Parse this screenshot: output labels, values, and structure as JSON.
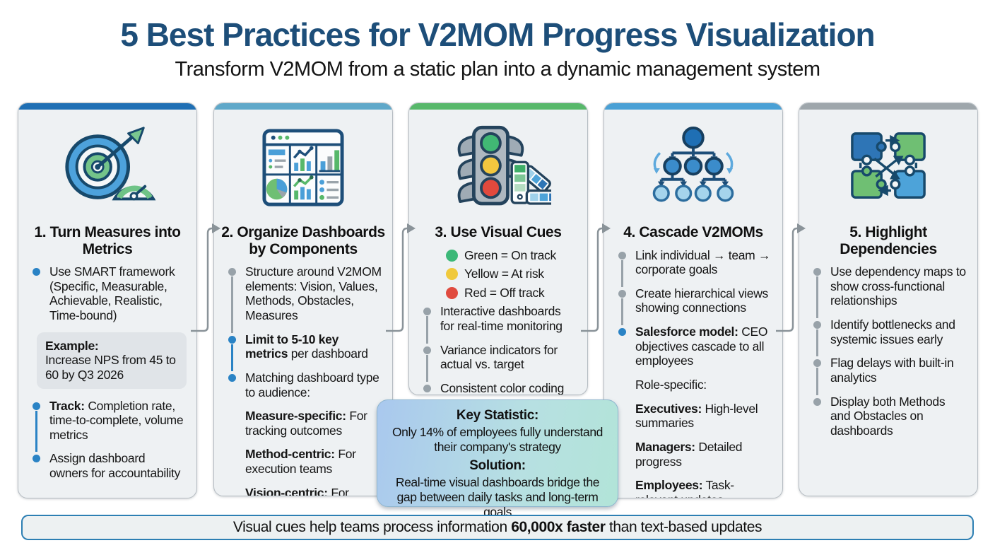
{
  "header": {
    "title": "5 Best Practices for V2MOM Progress Visualization",
    "subtitle": "Transform V2MOM from a static plan into a dynamic management system"
  },
  "colors": {
    "title_navy": "#1d4e79",
    "bullet_blue": "#2a83c5",
    "bullet_gray": "#98a2a9",
    "green": "#3cb878",
    "yellow": "#f0c93c",
    "red": "#e04b3f"
  },
  "cards": [
    {
      "title": "1. Turn Measures into Metrics",
      "accent": "#1f6fb4",
      "icon": "target-gauge-icon",
      "items": [
        {
          "kind": "bullet",
          "dot": "blue",
          "lead": "",
          "text": "Use SMART framework (Specific, Measurable, Achievable, Realistic, Time-bound)"
        },
        {
          "kind": "example",
          "lead": "Example:",
          "text": "Increase NPS from 45 to 60 by Q3 2026"
        },
        {
          "kind": "bullet",
          "dot": "blue",
          "lead": "Track:",
          "text": "Completion rate, time-to-complete, volume metrics"
        },
        {
          "kind": "bullet",
          "dot": "blue",
          "lead": "",
          "text": "Assign dashboard owners for accountability"
        }
      ]
    },
    {
      "title": "2. Organize Dashboards by Components",
      "accent": "#5fa8c9",
      "icon": "dashboard-grid-icon",
      "items": [
        {
          "kind": "bullet",
          "dot": "gray",
          "lead": "",
          "text": "Structure around V2MOM elements: Vision, Values, Methods, Obstacles, Measures"
        },
        {
          "kind": "bullet",
          "dot": "blue",
          "lead": "Limit to 5-10 key metrics",
          "text": "per dashboard"
        },
        {
          "kind": "bullet",
          "dot": "blue",
          "lead": "",
          "text": "Matching dashboard type to audience:"
        },
        {
          "kind": "sub",
          "lead": "Measure-specific:",
          "text": "For tracking outcomes"
        },
        {
          "kind": "sub",
          "lead": "Method-centric:",
          "text": "For execution teams"
        },
        {
          "kind": "sub",
          "lead": "Vision-centric:",
          "text": "For executives"
        }
      ]
    },
    {
      "title": "3. Use Visual Cues",
      "accent": "#57b86a",
      "icon": "traffic-light-icon",
      "items": [
        {
          "kind": "legend",
          "color": "#3cb878",
          "text": "Green = On track"
        },
        {
          "kind": "legend",
          "color": "#f0c93c",
          "text": "Yellow = At risk"
        },
        {
          "kind": "legend",
          "color": "#e04b3f",
          "text": "Red = Off track"
        },
        {
          "kind": "bullet",
          "dot": "gray",
          "lead": "",
          "text": "Interactive dashboards for real-time monitoring"
        },
        {
          "kind": "bullet",
          "dot": "gray",
          "lead": "",
          "text": "Variance indicators for actual vs. target"
        },
        {
          "kind": "bullet",
          "dot": "gray",
          "lead": "",
          "text": "Consistent color coding across all dashboards"
        }
      ]
    },
    {
      "title": "4. Cascade V2MOMs",
      "accent": "#49a0d5",
      "icon": "cascade-tree-icon",
      "items": [
        {
          "kind": "bullet",
          "dot": "gray",
          "lead": "",
          "text": "Link individual → team → corporate goals"
        },
        {
          "kind": "bullet",
          "dot": "gray",
          "lead": "",
          "text": "Create hierarchical views showing connections"
        },
        {
          "kind": "bullet",
          "dot": "blue",
          "lead": "Salesforce model:",
          "text": "CEO objectives cascade to all employees"
        },
        {
          "kind": "plain",
          "lead": "",
          "text": "Role-specific:"
        },
        {
          "kind": "sub",
          "lead": "Executives:",
          "text": "High-level summaries"
        },
        {
          "kind": "sub",
          "lead": "Managers:",
          "text": "Detailed progress"
        },
        {
          "kind": "sub",
          "lead": "Employees:",
          "text": "Task-relevant updates"
        }
      ]
    },
    {
      "title": "5. Highlight Dependencies",
      "accent": "#9ea6ab",
      "icon": "puzzle-dependencies-icon",
      "items": [
        {
          "kind": "bullet",
          "dot": "gray",
          "lead": "",
          "text": "Use dependency maps to show cross-functional relationships"
        },
        {
          "kind": "bullet",
          "dot": "gray",
          "lead": "",
          "text": "Identify bottlenecks and systemic issues early"
        },
        {
          "kind": "bullet",
          "dot": "gray",
          "lead": "",
          "text": "Flag delays with built-in analytics"
        },
        {
          "kind": "bullet",
          "dot": "gray",
          "lead": "",
          "text": "Display both Methods and Obstacles on dashboards"
        }
      ]
    }
  ],
  "key_stat": {
    "stat_label": "Key Statistic:",
    "stat_text": "Only 14% of employees fully understand their company's strategy",
    "solution_label": "Solution:",
    "solution_text": "Real-time visual dashboards bridge the gap between daily tasks and long-term goals"
  },
  "footer": {
    "prefix": "Visual cues help teams process information ",
    "highlight": "60,000x faster",
    "suffix": " than text-based updates"
  }
}
